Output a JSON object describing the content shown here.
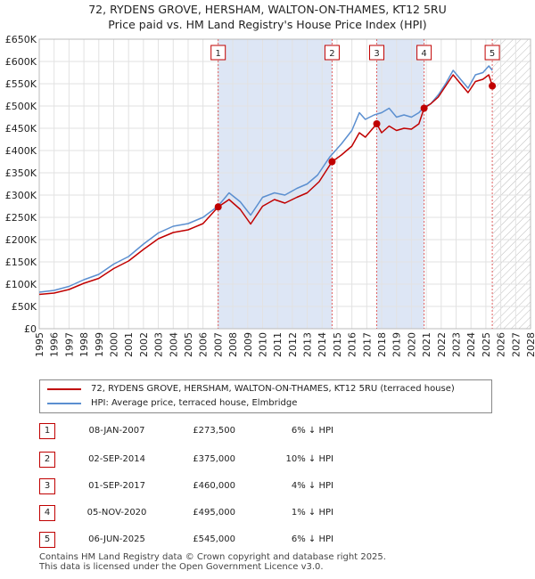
{
  "header": {
    "title_line1": "72, RYDENS GROVE, HERSHAM, WALTON-ON-THAMES, KT12 5RU",
    "title_line2": "Price paid vs. HM Land Registry's House Price Index (HPI)"
  },
  "legend": {
    "property_label": "72, RYDENS GROVE, HERSHAM, WALTON-ON-THAMES, KT12 5RU (terraced house)",
    "hpi_label": "HPI: Average price, terraced house, Elmbridge"
  },
  "colors": {
    "property": "#c00000",
    "hpi": "#5b8fd0",
    "shade": "#dde6f5",
    "marker_line": "#e06060"
  },
  "transactions": [
    {
      "num": "1",
      "date": "08-JAN-2007",
      "price": "£273,500",
      "hpi": "6% ↓ HPI"
    },
    {
      "num": "2",
      "date": "02-SEP-2014",
      "price": "£375,000",
      "hpi": "10% ↓ HPI"
    },
    {
      "num": "3",
      "date": "01-SEP-2017",
      "price": "£460,000",
      "hpi": "4% ↓ HPI"
    },
    {
      "num": "4",
      "date": "05-NOV-2020",
      "price": "£495,000",
      "hpi": "1% ↓ HPI"
    },
    {
      "num": "5",
      "date": "06-JUN-2025",
      "price": "£545,000",
      "hpi": "6% ↓ HPI"
    }
  ],
  "footer": {
    "line1": "Contains HM Land Registry data © Crown copyright and database right 2025.",
    "line2": "This data is licensed under the Open Government Licence v3.0."
  },
  "chart_data": {
    "type": "line",
    "title": "72, RYDENS GROVE, HERSHAM, WALTON-ON-THAMES, KT12 5RU Price paid vs. HM Land Registry's House Price Index (HPI)",
    "xlabel": "",
    "ylabel": "",
    "xlim": [
      1995,
      2028
    ],
    "ylim": [
      0,
      650000
    ],
    "x_ticks": [
      1995,
      1996,
      1997,
      1998,
      1999,
      2000,
      2001,
      2002,
      2003,
      2004,
      2005,
      2006,
      2007,
      2008,
      2009,
      2010,
      2011,
      2012,
      2013,
      2014,
      2015,
      2016,
      2017,
      2018,
      2019,
      2020,
      2021,
      2022,
      2023,
      2024,
      2025,
      2026,
      2027,
      2028
    ],
    "y_ticks": [
      {
        "value": 0,
        "label": "£0"
      },
      {
        "value": 50000,
        "label": "£50K"
      },
      {
        "value": 100000,
        "label": "£100K"
      },
      {
        "value": 150000,
        "label": "£150K"
      },
      {
        "value": 200000,
        "label": "£200K"
      },
      {
        "value": 250000,
        "label": "£250K"
      },
      {
        "value": 300000,
        "label": "£300K"
      },
      {
        "value": 350000,
        "label": "£350K"
      },
      {
        "value": 400000,
        "label": "£400K"
      },
      {
        "value": 450000,
        "label": "£450K"
      },
      {
        "value": 500000,
        "label": "£500K"
      },
      {
        "value": 550000,
        "label": "£550K"
      },
      {
        "value": 600000,
        "label": "£600K"
      },
      {
        "value": 650000,
        "label": "£650K"
      }
    ],
    "grid": true,
    "shaded_ranges": [
      [
        2007.02,
        2014.67
      ],
      [
        2017.67,
        2020.85
      ]
    ],
    "future_hatch_from": 2025.43,
    "series": [
      {
        "name": "HPI: Average price, terraced house, Elmbridge",
        "points": [
          [
            1995,
            82000
          ],
          [
            1996,
            86000
          ],
          [
            1997,
            95000
          ],
          [
            1998,
            110000
          ],
          [
            1999,
            122000
          ],
          [
            2000,
            145000
          ],
          [
            2001,
            162000
          ],
          [
            2002,
            190000
          ],
          [
            2003,
            215000
          ],
          [
            2004,
            230000
          ],
          [
            2005,
            236000
          ],
          [
            2006,
            250000
          ],
          [
            2007,
            275000
          ],
          [
            2007.75,
            305000
          ],
          [
            2008.5,
            285000
          ],
          [
            2009.2,
            255000
          ],
          [
            2010,
            295000
          ],
          [
            2010.8,
            305000
          ],
          [
            2011.5,
            300000
          ],
          [
            2012.3,
            315000
          ],
          [
            2013,
            325000
          ],
          [
            2013.7,
            345000
          ],
          [
            2014.5,
            385000
          ],
          [
            2015.3,
            415000
          ],
          [
            2016,
            445000
          ],
          [
            2016.5,
            485000
          ],
          [
            2016.9,
            470000
          ],
          [
            2017.5,
            480000
          ],
          [
            2018,
            485000
          ],
          [
            2018.5,
            495000
          ],
          [
            2019,
            475000
          ],
          [
            2019.5,
            480000
          ],
          [
            2020,
            475000
          ],
          [
            2020.5,
            485000
          ],
          [
            2020.85,
            498000
          ],
          [
            2021.3,
            505000
          ],
          [
            2021.8,
            525000
          ],
          [
            2022.3,
            550000
          ],
          [
            2022.8,
            580000
          ],
          [
            2023.3,
            560000
          ],
          [
            2023.8,
            540000
          ],
          [
            2024.3,
            570000
          ],
          [
            2024.8,
            575000
          ],
          [
            2025.2,
            590000
          ],
          [
            2025.43,
            580000
          ]
        ]
      },
      {
        "name": "72, RYDENS GROVE, HERSHAM, WALTON-ON-THAMES, KT12 5RU (terraced house)",
        "points": [
          [
            1995,
            77000
          ],
          [
            1996,
            80000
          ],
          [
            1997,
            88000
          ],
          [
            1998,
            102000
          ],
          [
            1999,
            113000
          ],
          [
            2000,
            135000
          ],
          [
            2001,
            152000
          ],
          [
            2002,
            178000
          ],
          [
            2003,
            202000
          ],
          [
            2004,
            216000
          ],
          [
            2005,
            222000
          ],
          [
            2006,
            236000
          ],
          [
            2007.02,
            273500
          ],
          [
            2007.75,
            290000
          ],
          [
            2008.5,
            268000
          ],
          [
            2009.2,
            235000
          ],
          [
            2010,
            275000
          ],
          [
            2010.8,
            290000
          ],
          [
            2011.5,
            282000
          ],
          [
            2012.3,
            295000
          ],
          [
            2013,
            305000
          ],
          [
            2013.8,
            330000
          ],
          [
            2014.67,
            375000
          ],
          [
            2015.3,
            390000
          ],
          [
            2016,
            410000
          ],
          [
            2016.5,
            440000
          ],
          [
            2016.9,
            430000
          ],
          [
            2017.67,
            460000
          ],
          [
            2018,
            440000
          ],
          [
            2018.5,
            455000
          ],
          [
            2019,
            445000
          ],
          [
            2019.5,
            450000
          ],
          [
            2020,
            448000
          ],
          [
            2020.5,
            460000
          ],
          [
            2020.85,
            495000
          ],
          [
            2021.3,
            505000
          ],
          [
            2021.8,
            520000
          ],
          [
            2022.3,
            545000
          ],
          [
            2022.8,
            570000
          ],
          [
            2023.3,
            550000
          ],
          [
            2023.8,
            530000
          ],
          [
            2024.3,
            555000
          ],
          [
            2024.8,
            560000
          ],
          [
            2025.2,
            570000
          ],
          [
            2025.43,
            545000
          ]
        ]
      }
    ],
    "sales": [
      {
        "label": "1",
        "x": 2007.02,
        "y": 273500
      },
      {
        "label": "2",
        "x": 2014.67,
        "y": 375000
      },
      {
        "label": "3",
        "x": 2017.67,
        "y": 460000
      },
      {
        "label": "4",
        "x": 2020.85,
        "y": 495000
      },
      {
        "label": "5",
        "x": 2025.43,
        "y": 545000
      }
    ]
  }
}
